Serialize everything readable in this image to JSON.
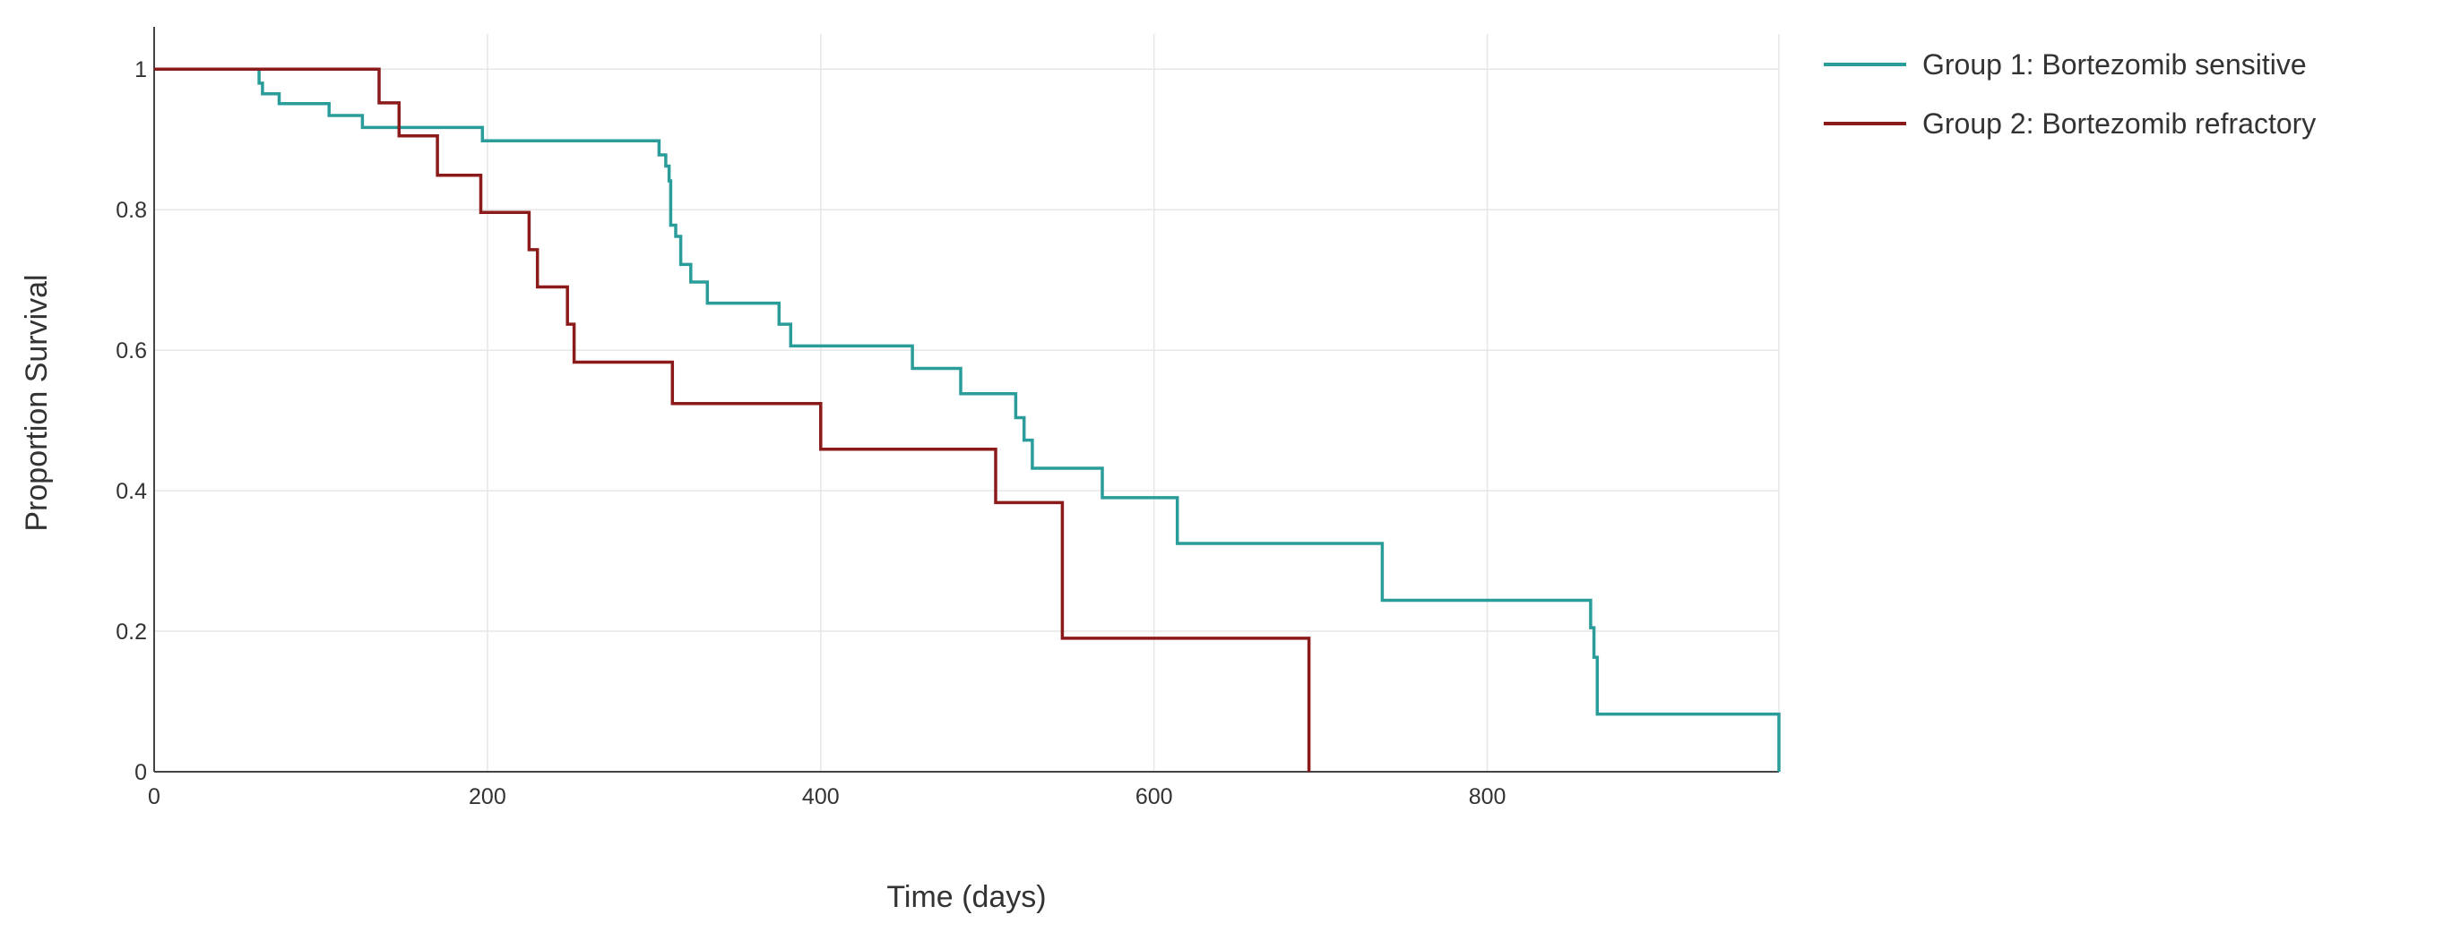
{
  "chart_data": {
    "type": "line",
    "step": true,
    "title": "",
    "xlabel": "Time (days)",
    "ylabel": "Proportion Survival",
    "xlim": [
      0,
      975
    ],
    "ylim": [
      0,
      1.05
    ],
    "xticks": [
      0,
      200,
      400,
      600,
      800
    ],
    "yticks": [
      0,
      0.2,
      0.4,
      0.6,
      0.8,
      1
    ],
    "xtick_labels": [
      "0",
      "200",
      "400",
      "600",
      "800"
    ],
    "ytick_labels": [
      "0",
      "0.2",
      "0.4",
      "0.6",
      "0.8",
      "1"
    ],
    "grid": true,
    "legend_position": "top-right, outside plot",
    "series": [
      {
        "name": "Group 1: Bortezomib sensitive",
        "color": "#2a9d9a",
        "x": [
          0,
          63,
          65,
          75,
          105,
          125,
          197,
          303,
          307,
          309,
          310,
          313,
          316,
          322,
          332,
          375,
          382,
          455,
          484,
          517,
          522,
          527,
          569,
          614,
          737,
          862,
          864,
          866,
          975,
          975
        ],
        "y": [
          1,
          0.98,
          0.965,
          0.951,
          0.934,
          0.917,
          0.898,
          0.878,
          0.862,
          0.841,
          0.778,
          0.762,
          0.722,
          0.697,
          0.667,
          0.637,
          0.606,
          0.574,
          0.538,
          0.504,
          0.472,
          0.432,
          0.39,
          0.325,
          0.244,
          0.205,
          0.163,
          0.082,
          0.082,
          0
        ]
      },
      {
        "name": "Group 2: Bortezomib refractory",
        "color": "#8b1a1a",
        "x": [
          0,
          135,
          147,
          170,
          196,
          225,
          230,
          236,
          248,
          252,
          311,
          400,
          505,
          545,
          693,
          693
        ],
        "y": [
          1,
          0.952,
          0.905,
          0.849,
          0.796,
          0.743,
          0.69,
          0.69,
          0.637,
          0.583,
          0.524,
          0.459,
          0.383,
          0.19,
          0.19,
          0
        ]
      }
    ]
  }
}
